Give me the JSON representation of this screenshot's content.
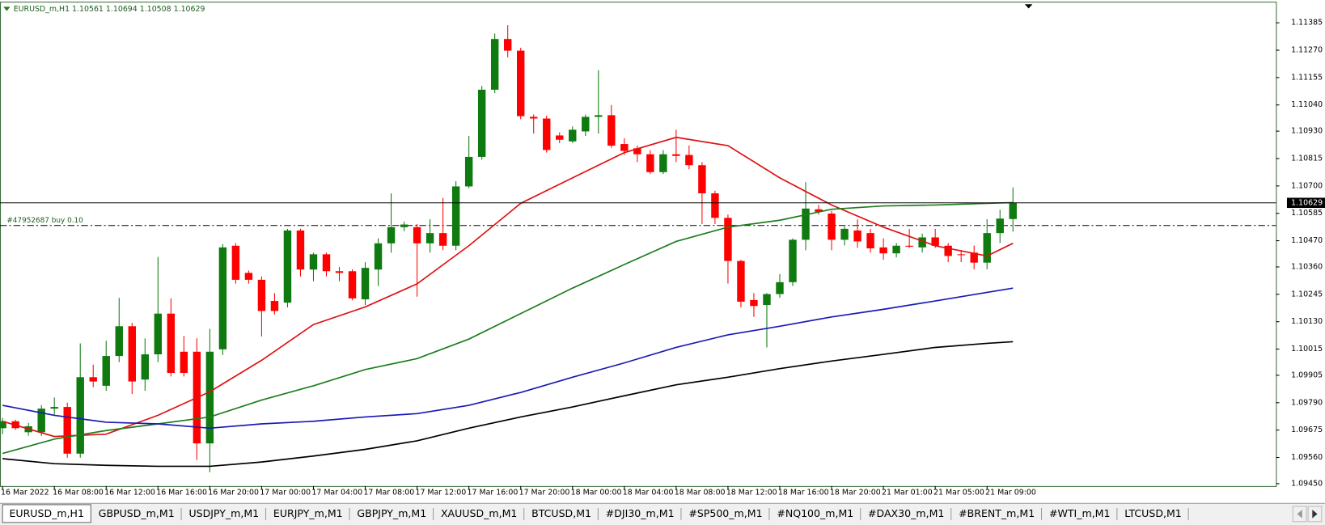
{
  "chart_data": {
    "type": "candlestick",
    "title": "EURUSD_m,H1  1.10561 1.10694 1.10508 1.10629",
    "categories": [
      "16 Mar 2022",
      null,
      null,
      null,
      "16 Mar 08:00",
      null,
      null,
      null,
      "16 Mar 12:00",
      null,
      null,
      null,
      "16 Mar 16:00",
      null,
      null,
      null,
      "16 Mar 20:00",
      null,
      null,
      null,
      "17 Mar 00:00",
      null,
      null,
      null,
      "17 Mar 04:00",
      null,
      null,
      null,
      "17 Mar 08:00",
      null,
      null,
      null,
      "17 Mar 12:00",
      null,
      null,
      null,
      "17 Mar 16:00",
      null,
      null,
      null,
      "17 Mar 20:00",
      null,
      null,
      null,
      "18 Mar 00:00",
      null,
      null,
      null,
      "18 Mar 04:00",
      null,
      null,
      null,
      "18 Mar 08:00",
      null,
      null,
      null,
      "18 Mar 12:00",
      null,
      null,
      null,
      "18 Mar 16:00",
      null,
      null,
      null,
      "18 Mar 20:00",
      null,
      null,
      null,
      "21 Mar 01:00",
      null,
      null,
      null,
      "21 Mar 05:00",
      null,
      null,
      null,
      "21 Mar 09:00",
      null,
      null
    ],
    "open": [
      1.09683,
      1.09712,
      1.09666,
      1.09666,
      1.09765,
      1.09772,
      1.09576,
      1.09897,
      1.09861,
      1.09986,
      1.10111,
      1.09887,
      1.09993,
      1.10164,
      1.10004,
      1.10004,
      1.09619,
      1.10014,
      1.10449,
      1.10335,
      1.10306,
      1.10217,
      1.1021,
      1.10513,
      1.10349,
      1.10413,
      1.10342,
      1.10342,
      1.10224,
      1.10349,
      1.10459,
      1.10527,
      1.10527,
      1.10459,
      1.10502,
      1.10449,
      1.10698,
      1.10822,
      1.11104,
      1.11317,
      1.11268,
      1.1099,
      1.10983,
      1.10912,
      1.10887,
      1.10929,
      1.1099,
      1.10997,
      1.10876,
      1.10858,
      1.10833,
      1.10758,
      1.10833,
      1.1083,
      1.10787,
      1.10669,
      1.10566,
      1.10385,
      1.10221,
      1.102,
      1.10246,
      1.10296,
      1.10474,
      1.10602,
      1.10584,
      1.10474,
      1.10513,
      1.10502,
      1.10442,
      1.10417,
      1.10449,
      1.10442,
      1.10484,
      1.10449,
      1.10413,
      1.1042,
      1.10378,
      1.10502,
      1.10561
    ],
    "high": [
      1.09726,
      1.09719,
      1.09705,
      1.0978,
      1.09812,
      1.0979,
      1.10039,
      1.0995,
      1.1005,
      1.1023,
      1.10125,
      1.1006,
      1.10402,
      1.10228,
      1.1007,
      1.1006,
      1.101,
      1.10456,
      1.1046,
      1.10345,
      1.1032,
      1.1025,
      1.1052,
      1.1052,
      1.1042,
      1.1042,
      1.1036,
      1.1035,
      1.1038,
      1.1048,
      1.10669,
      1.1055,
      1.1054,
      1.1056,
      1.1065,
      1.1072,
      1.1091,
      1.1112,
      1.1134,
      1.11375,
      1.1128,
      1.11,
      1.10995,
      1.10925,
      1.1095,
      1.11,
      1.11186,
      1.1104,
      1.109,
      1.1087,
      1.1085,
      1.1085,
      1.10936,
      1.1087,
      1.108,
      1.1068,
      1.1058,
      1.1039,
      1.1025,
      1.1025,
      1.1033,
      1.1048,
      1.10716,
      1.1062,
      1.10595,
      1.1053,
      1.1056,
      1.1052,
      1.1048,
      1.1046,
      1.1052,
      1.105,
      1.1052,
      1.1046,
      1.1043,
      1.1045,
      1.1056,
      1.106,
      1.10694
    ],
    "low": [
      1.09658,
      1.09676,
      1.09651,
      1.09651,
      1.0974,
      1.09559,
      1.09559,
      1.09855,
      1.0984,
      1.0996,
      1.09826,
      1.0984,
      1.0996,
      1.099,
      1.099,
      1.0955,
      1.09498,
      1.0999,
      1.1029,
      1.1029,
      1.10068,
      1.1016,
      1.1019,
      1.1032,
      1.103,
      1.1032,
      1.103,
      1.1022,
      1.102,
      1.1028,
      1.1042,
      1.1051,
      1.10235,
      1.1042,
      1.1043,
      1.1043,
      1.1069,
      1.1081,
      1.1109,
      1.1124,
      1.1098,
      1.1092,
      1.1084,
      1.1088,
      1.1088,
      1.1091,
      1.1092,
      1.1086,
      1.1083,
      1.108,
      1.1075,
      1.1075,
      1.108,
      1.1077,
      1.1054,
      1.1054,
      1.1029,
      1.1019,
      1.1015,
      1.10022,
      1.1023,
      1.1028,
      1.1043,
      1.1058,
      1.1043,
      1.1045,
      1.1044,
      1.1042,
      1.1039,
      1.104,
      1.1044,
      1.1042,
      1.1044,
      1.1038,
      1.1038,
      1.1035,
      1.1035,
      1.1046,
      1.10508
    ],
    "close": [
      1.09712,
      1.09683,
      1.09691,
      1.09765,
      1.09772,
      1.09576,
      1.09897,
      1.09879,
      1.09986,
      1.10111,
      1.09879,
      1.09993,
      1.10164,
      1.09915,
      1.09915,
      1.09619,
      1.10004,
      1.10442,
      1.10306,
      1.10306,
      1.10175,
      1.10175,
      1.10513,
      1.10349,
      1.10413,
      1.10342,
      1.10335,
      1.10228,
      1.10356,
      1.10459,
      1.10527,
      1.10538,
      1.10459,
      1.10502,
      1.10449,
      1.10698,
      1.10822,
      1.11104,
      1.11317,
      1.11268,
      1.10993,
      1.10983,
      1.10851,
      1.10894,
      1.10936,
      1.1099,
      1.10997,
      1.10869,
      1.10847,
      1.10833,
      1.10758,
      1.10833,
      1.10826,
      1.10787,
      1.10669,
      1.10566,
      1.10385,
      1.10214,
      1.10196,
      1.10246,
      1.10296,
      1.10474,
      1.10605,
      1.10591,
      1.10474,
      1.1052,
      1.10467,
      1.10438,
      1.10417,
      1.10449,
      1.10445,
      1.10484,
      1.10449,
      1.10406,
      1.1041,
      1.10378,
      1.10502,
      1.10563,
      1.10629
    ],
    "up_color": "#0f7a0f",
    "down_color": "#ff0000",
    "series": [
      {
        "color": "#e01010",
        "x": [
          0,
          4,
          8,
          12,
          16,
          20,
          24,
          28,
          32,
          36,
          40,
          44,
          48,
          52,
          56,
          60,
          64,
          68,
          72,
          76,
          78
        ],
        "values": [
          1.09712,
          1.09648,
          1.09658,
          1.09737,
          1.09836,
          1.09968,
          1.10118,
          1.10192,
          1.10289,
          1.10449,
          1.10627,
          1.10734,
          1.1084,
          1.10904,
          1.10869,
          1.10734,
          1.1062,
          1.10527,
          1.10449,
          1.10406,
          1.10459
        ]
      },
      {
        "color": "#1e7d1e",
        "x": [
          0,
          4,
          8,
          12,
          16,
          20,
          24,
          28,
          32,
          36,
          40,
          44,
          48,
          52,
          56,
          60,
          64,
          68,
          72,
          76,
          78
        ],
        "values": [
          1.09577,
          1.09637,
          1.09673,
          1.09701,
          1.0973,
          1.09801,
          1.09861,
          1.09929,
          1.09975,
          1.10057,
          1.10164,
          1.10271,
          1.1037,
          1.10467,
          1.10527,
          1.10556,
          1.10602,
          1.10616,
          1.1062,
          1.10627,
          1.1063
        ]
      },
      {
        "color": "#1a1ab4",
        "x": [
          0,
          4,
          8,
          12,
          16,
          20,
          24,
          28,
          32,
          36,
          40,
          44,
          48,
          52,
          56,
          60,
          64,
          68,
          72,
          76,
          78
        ],
        "values": [
          1.09779,
          1.09737,
          1.09708,
          1.09701,
          1.09683,
          1.09701,
          1.09712,
          1.0973,
          1.09744,
          1.09779,
          1.09833,
          1.09897,
          1.09957,
          1.10022,
          1.10075,
          1.10111,
          1.1015,
          1.10182,
          1.10217,
          1.10253,
          1.10271
        ]
      },
      {
        "color": "#000000",
        "x": [
          0,
          4,
          8,
          12,
          16,
          20,
          24,
          28,
          32,
          36,
          40,
          44,
          48,
          52,
          56,
          60,
          64,
          68,
          72,
          76,
          78
        ],
        "values": [
          1.09555,
          1.09534,
          1.09527,
          1.09523,
          1.09523,
          1.09541,
          1.09566,
          1.09594,
          1.0963,
          1.09683,
          1.0973,
          1.09772,
          1.09819,
          1.09865,
          1.09897,
          1.09933,
          1.09965,
          1.09993,
          1.10022,
          1.10039,
          1.10046
        ]
      }
    ],
    "ylim": [
      1.0944,
      1.1147
    ],
    "yticks": [
      {
        "value": 1.0945,
        "label": "1.09450"
      },
      {
        "value": 1.0956,
        "label": "1.09560"
      },
      1.09675,
      {
        "value": 1.0979,
        "label": "1.09790"
      },
      1.09905,
      1.10015,
      {
        "value": 1.1013,
        "label": "1.10130"
      },
      1.10245,
      {
        "value": 1.1036,
        "label": "1.10360"
      },
      {
        "value": 1.1047,
        "label": "1.10470"
      },
      1.10585,
      {
        "value": 1.107,
        "label": "1.10700"
      },
      1.10815,
      {
        "value": 1.1093,
        "label": "1.10930"
      },
      {
        "value": 1.1104,
        "label": "1.11040"
      },
      1.11155,
      {
        "value": 1.1127,
        "label": "1.11270"
      },
      1.11385
    ],
    "bid": 1.10629,
    "order_line": {
      "label": "#47952687 buy 0.10",
      "value": 1.10534
    }
  },
  "tabs": [
    "EURUSD_m,H1",
    "GBPUSD_m,M1",
    "USDJPY_m,M1",
    "EURJPY_m,M1",
    "GBPJPY_m,M1",
    "XAUUSD_m,M1",
    "BTCUSD,M1",
    "#DJI30_m,M1",
    "#SP500_m,M1",
    "#NQ100_m,M1",
    "#DAX30_m,M1",
    "#BRENT_m,M1",
    "#WTI_m,M1",
    "LTCUSD,M1"
  ],
  "active_tab": 0
}
